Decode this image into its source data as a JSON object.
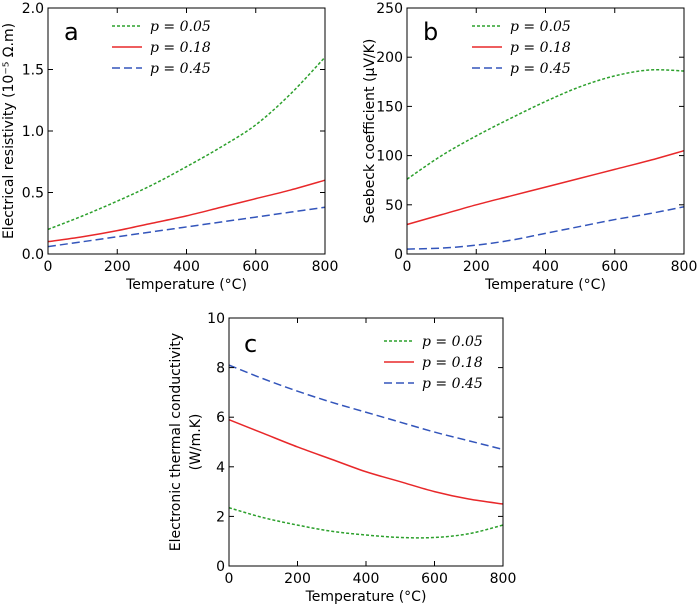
{
  "chart_data": [
    {
      "panel": "a",
      "type": "line",
      "xlabel": "Temperature (°C)",
      "ylabel_main": "Electrical resistivity",
      "ylabel_unit": "(10⁻⁵ Ω.m)",
      "xlim": [
        0,
        800
      ],
      "ylim": [
        0,
        2.0
      ],
      "xticks": [
        0,
        200,
        400,
        600,
        800
      ],
      "yticks": [
        0.0,
        0.5,
        1.0,
        1.5,
        2.0
      ],
      "ytick_labels": [
        "0.0",
        "0.5",
        "1.0",
        "1.5",
        "2.0"
      ],
      "legend": "top-center",
      "x": [
        0,
        100,
        200,
        300,
        400,
        500,
        600,
        700,
        800
      ],
      "series": [
        {
          "name": "p = 0.05",
          "color": "#2ca02c",
          "dash": "dotted",
          "values": [
            0.2,
            0.31,
            0.43,
            0.56,
            0.71,
            0.87,
            1.05,
            1.3,
            1.6
          ]
        },
        {
          "name": "p = 0.18",
          "color": "#e8282a",
          "dash": "solid",
          "values": [
            0.1,
            0.14,
            0.19,
            0.25,
            0.31,
            0.38,
            0.45,
            0.52,
            0.6
          ]
        },
        {
          "name": "p = 0.45",
          "color": "#3355bb",
          "dash": "dashed",
          "values": [
            0.06,
            0.1,
            0.14,
            0.18,
            0.22,
            0.26,
            0.3,
            0.34,
            0.38
          ]
        }
      ]
    },
    {
      "panel": "b",
      "type": "line",
      "xlabel": "Temperature (°C)",
      "ylabel_main": "Seebeck coefficient (μV/K)",
      "ylabel_unit": "",
      "xlim": [
        0,
        800
      ],
      "ylim": [
        0,
        250
      ],
      "xticks": [
        0,
        200,
        400,
        600,
        800
      ],
      "yticks": [
        0,
        50,
        100,
        150,
        200,
        250
      ],
      "ytick_labels": [
        "0",
        "50",
        "100",
        "150",
        "200",
        "250"
      ],
      "legend": "top-center",
      "x": [
        0,
        100,
        200,
        300,
        400,
        500,
        600,
        700,
        800
      ],
      "series": [
        {
          "name": "p = 0.05",
          "color": "#2ca02c",
          "dash": "dotted",
          "values": [
            76,
            100,
            120,
            138,
            155,
            170,
            181,
            187,
            186
          ]
        },
        {
          "name": "p = 0.18",
          "color": "#e8282a",
          "dash": "solid",
          "values": [
            30,
            40,
            50,
            59,
            68,
            77,
            86,
            95,
            105
          ]
        },
        {
          "name": "p = 0.45",
          "color": "#3355bb",
          "dash": "dashed",
          "values": [
            5,
            6,
            9,
            14,
            21,
            28,
            35,
            41,
            48
          ]
        }
      ]
    },
    {
      "panel": "c",
      "type": "line",
      "xlabel": "Temperature (°C)",
      "ylabel_main": "Electronic thermal conductivity",
      "ylabel_unit": "(W/m.K)",
      "xlim": [
        0,
        800
      ],
      "ylim": [
        0,
        10
      ],
      "xticks": [
        0,
        200,
        400,
        600,
        800
      ],
      "yticks": [
        0,
        2,
        4,
        6,
        8,
        10
      ],
      "ytick_labels": [
        "0",
        "2",
        "4",
        "6",
        "8",
        "10"
      ],
      "legend": "top-right",
      "x": [
        0,
        100,
        200,
        300,
        400,
        500,
        600,
        700,
        800
      ],
      "series": [
        {
          "name": "p = 0.05",
          "color": "#2ca02c",
          "dash": "dotted",
          "values": [
            2.35,
            1.95,
            1.65,
            1.4,
            1.25,
            1.15,
            1.15,
            1.3,
            1.65
          ]
        },
        {
          "name": "p = 0.18",
          "color": "#e8282a",
          "dash": "solid",
          "values": [
            5.9,
            5.35,
            4.8,
            4.3,
            3.8,
            3.4,
            3.0,
            2.7,
            2.5
          ]
        },
        {
          "name": "p = 0.45",
          "color": "#3355bb",
          "dash": "dashed",
          "values": [
            8.1,
            7.55,
            7.05,
            6.6,
            6.2,
            5.8,
            5.4,
            5.05,
            4.7
          ]
        }
      ]
    }
  ]
}
